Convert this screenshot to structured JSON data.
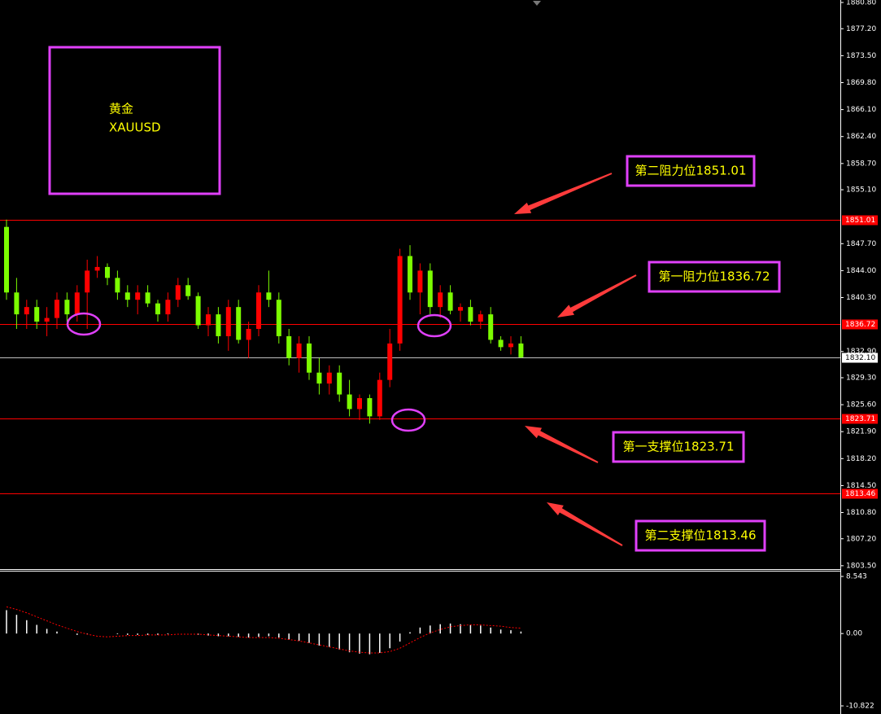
{
  "chart_data": [
    {
      "type": "candlestick",
      "up_color": "#ff0000",
      "down_color": "#7cfc00",
      "open": [
        1850,
        1841,
        1838,
        1839,
        1837,
        1837.5,
        1840,
        1838,
        1841,
        1844,
        1844.5,
        1843,
        1841,
        1840,
        1841,
        1839.5,
        1838,
        1840,
        1842,
        1840.5,
        1836.5,
        1838,
        1835,
        1839,
        1834.5,
        1836,
        1841,
        1840,
        1835,
        1832,
        1834,
        1830,
        1828.5,
        1830,
        1827,
        1825,
        1826.5,
        1824,
        1829,
        1834,
        1846,
        1841,
        1844,
        1839,
        1841,
        1838.5,
        1839,
        1837,
        1838,
        1834.5,
        1833.5,
        1834
      ],
      "high": [
        1851,
        1843,
        1840,
        1840,
        1839,
        1841,
        1841,
        1842,
        1845.5,
        1846,
        1845,
        1844,
        1842,
        1842,
        1842,
        1840,
        1841,
        1843,
        1843,
        1841,
        1839,
        1839,
        1840,
        1840,
        1837,
        1842,
        1844,
        1841,
        1836,
        1835,
        1835,
        1832,
        1831,
        1831,
        1829,
        1827,
        1827,
        1830,
        1836,
        1847,
        1847.5,
        1845,
        1845,
        1842,
        1842,
        1839.5,
        1840,
        1838.5,
        1839,
        1835,
        1835,
        1835
      ],
      "low": [
        1840,
        1836,
        1836,
        1836,
        1835,
        1836,
        1837,
        1837,
        1836,
        1843,
        1842,
        1840,
        1839,
        1838,
        1839,
        1837,
        1837,
        1839,
        1840,
        1836,
        1835,
        1834,
        1833,
        1834,
        1832,
        1835,
        1839,
        1834,
        1831,
        1830,
        1829,
        1827,
        1827,
        1826,
        1824,
        1823.5,
        1823,
        1823.5,
        1828,
        1833,
        1840,
        1838,
        1838,
        1837.5,
        1838,
        1837,
        1836.5,
        1836,
        1834,
        1833,
        1832.5,
        1832
      ],
      "close": [
        1841,
        1838,
        1839,
        1837,
        1837.5,
        1840,
        1838,
        1841,
        1844,
        1844.5,
        1843,
        1841,
        1840,
        1841,
        1839.5,
        1838,
        1840,
        1842,
        1840.5,
        1836.5,
        1838,
        1835,
        1839,
        1834.5,
        1836,
        1841,
        1840,
        1835,
        1832,
        1834,
        1830,
        1828.5,
        1830,
        1827,
        1825,
        1826.5,
        1824,
        1829,
        1834,
        1846,
        1841,
        1844,
        1839,
        1841,
        1838.5,
        1839,
        1837,
        1838,
        1834.5,
        1833.5,
        1834,
        1832.1
      ],
      "ylim": [
        1803.15,
        1881.14
      ],
      "yticks": [
        {
          "value": 1880.8,
          "label": "1880.80"
        },
        {
          "value": 1877.2,
          "label": "1877.20"
        },
        {
          "value": 1873.5,
          "label": "1873.50"
        },
        {
          "value": 1869.8,
          "label": "1869.80"
        },
        {
          "value": 1866.1,
          "label": "1866.10"
        },
        {
          "value": 1862.4,
          "label": "1862.40"
        },
        {
          "value": 1858.7,
          "label": "1858.70"
        },
        {
          "value": 1855.1,
          "label": "1855.10"
        },
        {
          "value": 1847.7,
          "label": "1847.70"
        },
        {
          "value": 1844.0,
          "label": "1844.00"
        },
        {
          "value": 1840.3,
          "label": "1840.30"
        },
        {
          "value": 1832.9,
          "label": "1832.90"
        },
        {
          "value": 1829.3,
          "label": "1829.30"
        },
        {
          "value": 1825.6,
          "label": "1825.60"
        },
        {
          "value": 1821.9,
          "label": "1821.90"
        },
        {
          "value": 1818.2,
          "label": "1818.20"
        },
        {
          "value": 1814.5,
          "label": "1814.50"
        },
        {
          "value": 1810.8,
          "label": "1810.80"
        },
        {
          "value": 1807.2,
          "label": "1807.20"
        },
        {
          "value": 1803.5,
          "label": "1803.50"
        }
      ],
      "levels": [
        {
          "value": 1851.01,
          "color": "#ff0000"
        },
        {
          "value": 1836.72,
          "color": "#ff0000"
        },
        {
          "value": {
            "value": 1832.1,
            "label": "1832.10"
          },
          "color": "#c0c0c0"
        },
        {
          "value": 1823.71,
          "color": "#ff0000"
        },
        {
          "value": 1813.46,
          "color": "#ff0000"
        }
      ],
      "title_box": [
        "黄金",
        "XAUUSD"
      ],
      "annotations": [
        "第二阻力位1851.01",
        "第一阻力位1836.72",
        "第一支撑位1823.71",
        "第二支撑位1813.46"
      ]
    },
    {
      "type": "macd",
      "histogram": {
        "color": "#ffffff",
        "values": [
          3.5,
          2.8,
          2,
          1.3,
          0.7,
          0.3,
          0,
          -0.2,
          -0.1,
          0,
          0,
          -0.1,
          -0.2,
          -0.2,
          -0.2,
          -0.2,
          -0.1,
          0,
          0,
          -0.2,
          -0.3,
          -0.4,
          -0.4,
          -0.5,
          -0.6,
          -0.5,
          -0.4,
          -0.6,
          -0.9,
          -1.1,
          -1.4,
          -1.8,
          -2,
          -2.4,
          -2.8,
          -3,
          -3.1,
          -2.9,
          -2.2,
          -1.2,
          0.2,
          0.9,
          1.2,
          1.4,
          1.5,
          1.4,
          1.3,
          1.2,
          0.9,
          0.6,
          0.5,
          0.3
        ]
      },
      "signal": {
        "color": "#ff0000",
        "values": [
          4,
          3.6,
          3.1,
          2.5,
          1.9,
          1.3,
          0.8,
          0.3,
          -0.1,
          -0.4,
          -0.5,
          -0.4,
          -0.3,
          -0.3,
          -0.2,
          -0.2,
          -0.2,
          -0.1,
          -0.1,
          -0.1,
          -0.2,
          -0.3,
          -0.4,
          -0.5,
          -0.6,
          -0.6,
          -0.6,
          -0.7,
          -0.9,
          -1.1,
          -1.4,
          -1.7,
          -2,
          -2.3,
          -2.6,
          -2.8,
          -2.9,
          -2.9,
          -2.7,
          -2.2,
          -1.4,
          -0.6,
          0.1,
          0.6,
          1,
          1.2,
          1.3,
          1.3,
          1.2,
          1.1,
          0.9,
          0.8
        ]
      },
      "ylim": [
        -11.55,
        9.4
      ],
      "yticks": [
        8.543,
        {
          "value": 0,
          "label": "0.00"
        },
        -10.822
      ]
    }
  ]
}
